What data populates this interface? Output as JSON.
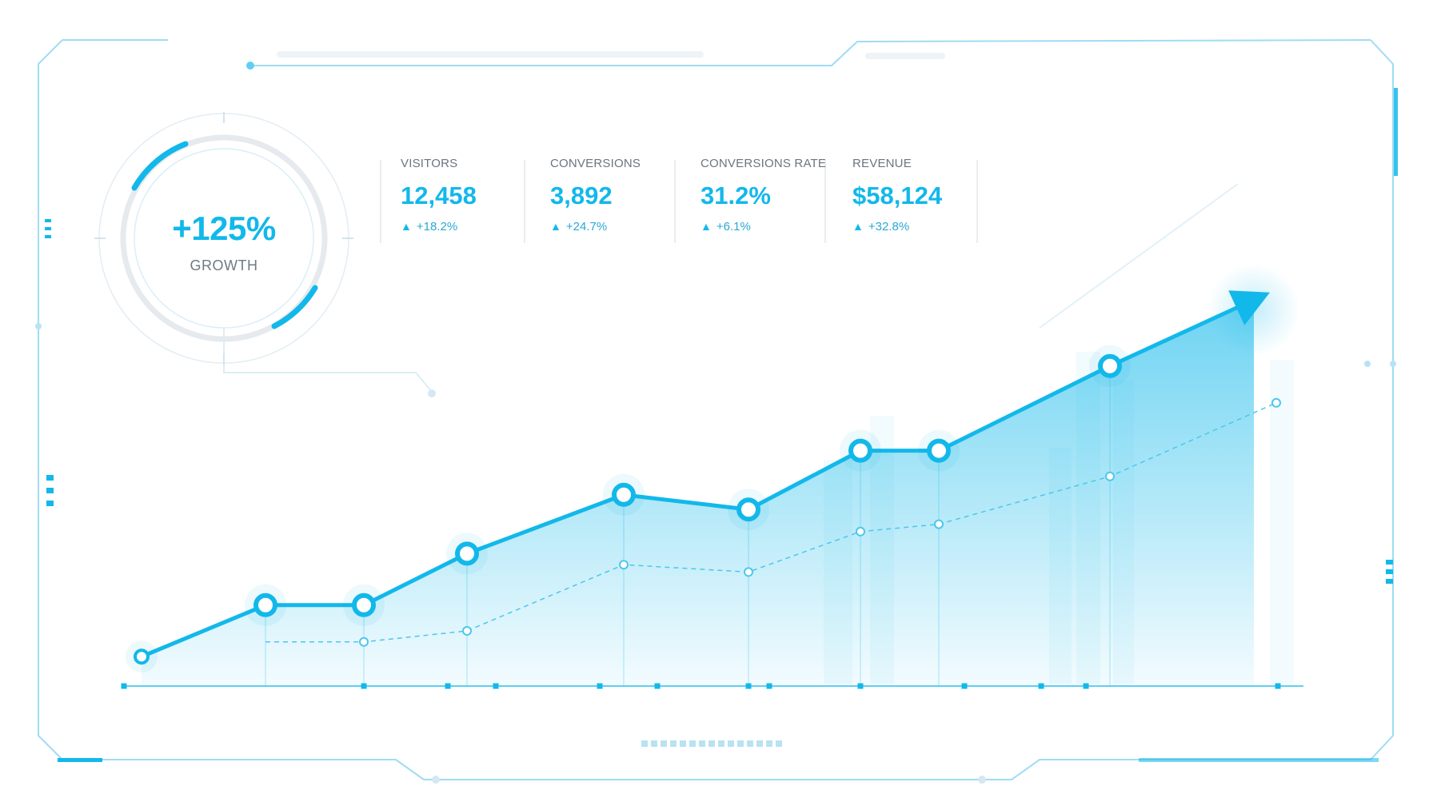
{
  "gauge": {
    "value": "+125%",
    "label": "GROWTH"
  },
  "kpis": [
    {
      "label": "VISITORS",
      "value": "12,458",
      "delta": "+18.2%"
    },
    {
      "label": "CONVERSIONS",
      "value": "3,892",
      "delta": "+24.7%"
    },
    {
      "label": "CONVERSIONS RATE",
      "value": "31.2%",
      "delta": "+6.1%"
    },
    {
      "label": "REVENUE",
      "value": "$58,124",
      "delta": "+32.8%"
    }
  ],
  "chart_data": {
    "type": "area",
    "title": "",
    "xlabel": "",
    "ylabel": "",
    "x": [
      0,
      1,
      2,
      3,
      4,
      5,
      6,
      7,
      8,
      9
    ],
    "ylim": [
      0,
      100
    ],
    "grid": false,
    "legend": "none",
    "series": [
      {
        "values": [
          8,
          22,
          22,
          36,
          52,
          48,
          64,
          64,
          87,
          105
        ],
        "color": "#12b8ea",
        "style": "solid",
        "filled": true,
        "arrow_end": true
      },
      {
        "values": [
          null,
          12,
          12,
          15,
          33,
          31,
          42,
          44,
          57,
          77
        ],
        "color": "#4cc7ee",
        "style": "dashed",
        "filled": false
      }
    ]
  },
  "colors": {
    "accent": "#12b8ea",
    "frame": "#5fcff2",
    "light": "#d7eef8"
  }
}
